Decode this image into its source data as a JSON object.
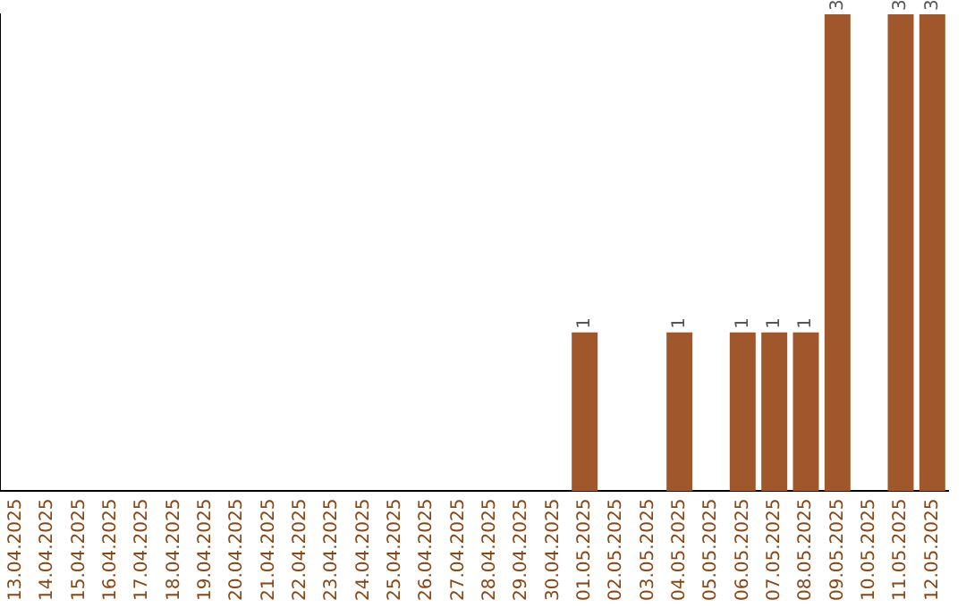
{
  "chart_data": {
    "type": "bar",
    "categories": [
      "13.04.2025",
      "14.04.2025",
      "15.04.2025",
      "16.04.2025",
      "17.04.2025",
      "18.04.2025",
      "19.04.2025",
      "20.04.2025",
      "21.04.2025",
      "22.04.2025",
      "23.04.2025",
      "24.04.2025",
      "25.04.2025",
      "26.04.2025",
      "27.04.2025",
      "28.04.2025",
      "29.04.2025",
      "30.04.2025",
      "01.05.2025",
      "02.05.2025",
      "03.05.2025",
      "04.05.2025",
      "05.05.2025",
      "06.05.2025",
      "07.05.2025",
      "08.05.2025",
      "09.05.2025",
      "10.05.2025",
      "11.05.2025",
      "12.05.2025"
    ],
    "values": [
      null,
      null,
      null,
      null,
      null,
      null,
      null,
      null,
      null,
      null,
      null,
      null,
      null,
      null,
      null,
      null,
      null,
      null,
      1,
      null,
      null,
      1,
      null,
      1,
      1,
      1,
      3,
      null,
      3,
      3
    ],
    "color": "#a0572b",
    "data_labels": true,
    "grid": false,
    "legend": false,
    "tick_labels": "x"
  }
}
